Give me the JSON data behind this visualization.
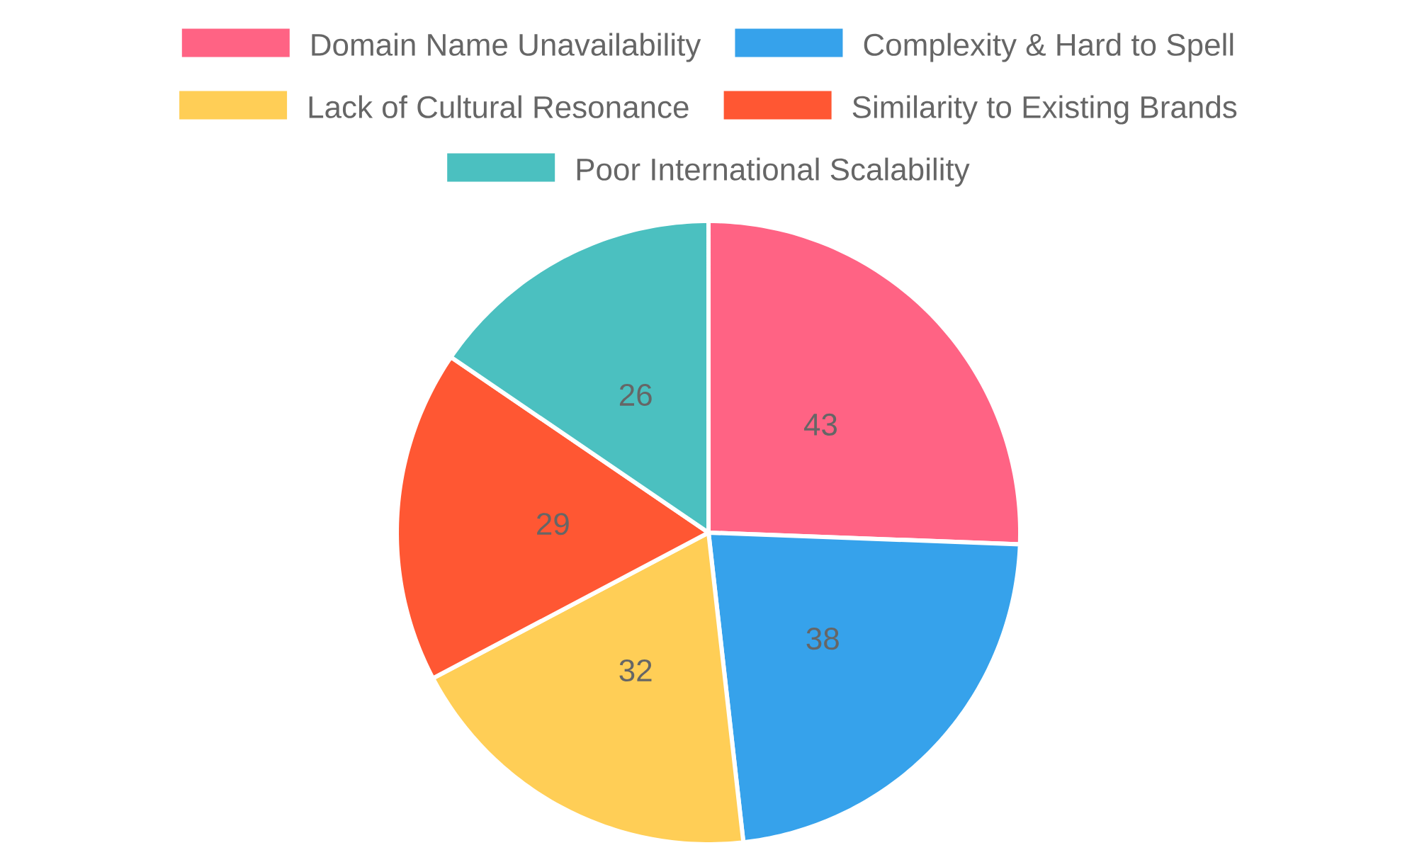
{
  "chart_data": {
    "type": "pie",
    "categories": [
      "Domain Name Unavailability",
      "Complexity & Hard to Spell",
      "Lack of Cultural Resonance",
      "Similarity to Existing Brands",
      "Poor International Scalability"
    ],
    "values": [
      43,
      38,
      32,
      29,
      26
    ],
    "colors": [
      "#ff6384",
      "#36a2eb",
      "#ffce56",
      "#ff5733",
      "#4bc0c0"
    ],
    "data_labels": true,
    "legend": "top"
  }
}
